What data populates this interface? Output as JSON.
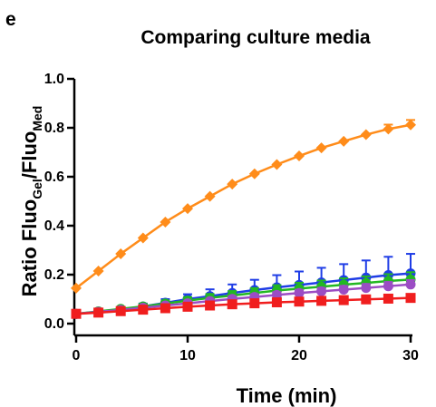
{
  "chart_data": {
    "panel_label": "e",
    "type": "line",
    "title": "Comparing culture media",
    "ylabel": "Ratio Fluo",
    "ylabel_sub1": "Gel",
    "ylabel_mid": "/Fluo",
    "ylabel_sub2": "Med",
    "xlabel": "Time (min)",
    "xlim": [
      0,
      30
    ],
    "ylim": [
      0,
      1.0
    ],
    "x_ticks": [
      "0",
      "10",
      "20",
      "30"
    ],
    "y_ticks": [
      "0.0",
      "0.2",
      "0.4",
      "0.6",
      "0.8",
      "1.0"
    ],
    "grid": false,
    "legend": "none",
    "x": [
      0,
      2,
      4,
      6,
      8,
      10,
      12,
      14,
      16,
      18,
      20,
      22,
      24,
      26,
      28,
      30
    ],
    "series": [
      {
        "color": "#FF8C1A",
        "marker": "diamond",
        "values": [
          0.145,
          0.215,
          0.285,
          0.35,
          0.415,
          0.47,
          0.52,
          0.57,
          0.612,
          0.65,
          0.685,
          0.718,
          0.745,
          0.772,
          0.795,
          0.812
        ],
        "errors": [
          0,
          0,
          0,
          0,
          0,
          0,
          0,
          0,
          0,
          0,
          0,
          0,
          0,
          0,
          0.018,
          0.02
        ]
      },
      {
        "color": "#1F3DE6",
        "marker": "circle",
        "values": [
          0.04,
          0.048,
          0.058,
          0.07,
          0.085,
          0.1,
          0.112,
          0.125,
          0.137,
          0.148,
          0.158,
          0.168,
          0.178,
          0.188,
          0.198,
          0.205
        ],
        "errors": [
          0.005,
          0.008,
          0.01,
          0.012,
          0.015,
          0.02,
          0.028,
          0.035,
          0.042,
          0.05,
          0.055,
          0.06,
          0.065,
          0.07,
          0.075,
          0.08
        ]
      },
      {
        "color": "#22B822",
        "marker": "circle",
        "values": [
          0.04,
          0.05,
          0.06,
          0.07,
          0.082,
          0.094,
          0.105,
          0.115,
          0.125,
          0.135,
          0.143,
          0.151,
          0.159,
          0.166,
          0.174,
          0.18
        ],
        "errors": [
          0.004,
          0.006,
          0.008,
          0.01,
          0.012,
          0.014,
          0.016,
          0.018,
          0.02,
          0.022,
          0.024,
          0.025,
          0.026,
          0.027,
          0.028,
          0.03
        ]
      },
      {
        "color": "#9B4DC4",
        "marker": "circle",
        "values": [
          0.04,
          0.048,
          0.056,
          0.065,
          0.074,
          0.083,
          0.092,
          0.101,
          0.109,
          0.117,
          0.125,
          0.132,
          0.139,
          0.146,
          0.153,
          0.16
        ],
        "errors": [
          0.003,
          0.004,
          0.005,
          0.006,
          0.007,
          0.008,
          0.009,
          0.01,
          0.011,
          0.012,
          0.013,
          0.014,
          0.015,
          0.016,
          0.017,
          0.018
        ]
      },
      {
        "color": "#F01E1E",
        "marker": "square",
        "values": [
          0.04,
          0.045,
          0.051,
          0.057,
          0.063,
          0.069,
          0.074,
          0.079,
          0.083,
          0.087,
          0.09,
          0.093,
          0.096,
          0.099,
          0.102,
          0.105
        ],
        "errors": [
          0.003,
          0.003,
          0.004,
          0.004,
          0.005,
          0.005,
          0.006,
          0.006,
          0.007,
          0.007,
          0.008,
          0.008,
          0.009,
          0.009,
          0.01,
          0.01
        ]
      }
    ]
  }
}
